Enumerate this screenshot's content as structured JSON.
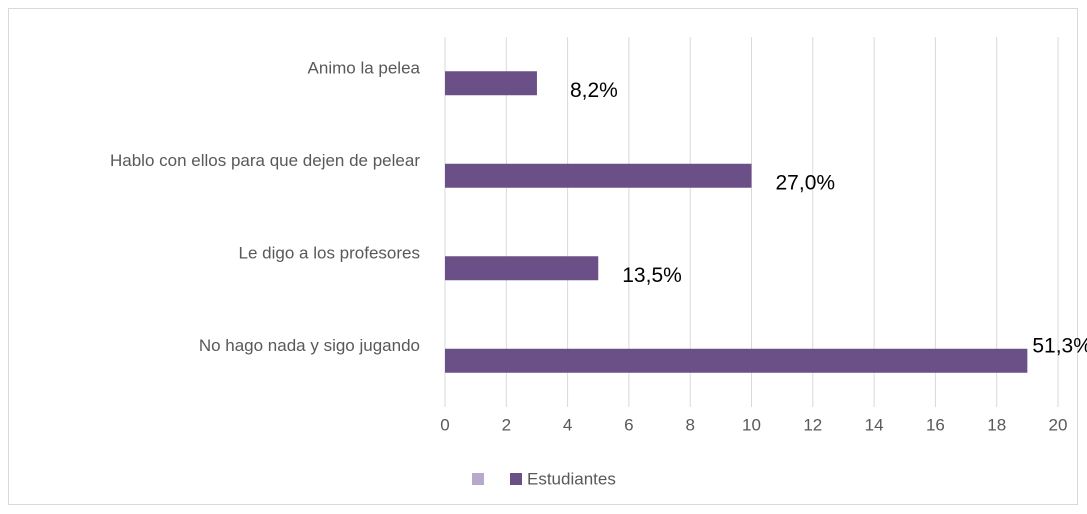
{
  "chart_data": {
    "type": "bar",
    "orientation": "horizontal",
    "categories": [
      "Animo la pelea",
      "Hablo con ellos para que dejen de pelear",
      "Le digo a los profesores",
      "No hago nada y sigo jugando"
    ],
    "series": [
      {
        "name": "Estudiantes",
        "color": "#6a5086",
        "values": [
          3,
          10,
          5,
          19
        ]
      }
    ],
    "annotations": [
      "8,2%",
      "27,0%",
      "13,5%",
      "51,3%"
    ],
    "xlim": [
      0,
      20
    ],
    "xticks": [
      0,
      2,
      4,
      6,
      8,
      10,
      12,
      14,
      16,
      18,
      20
    ],
    "grid": true,
    "legend": "bottom"
  }
}
